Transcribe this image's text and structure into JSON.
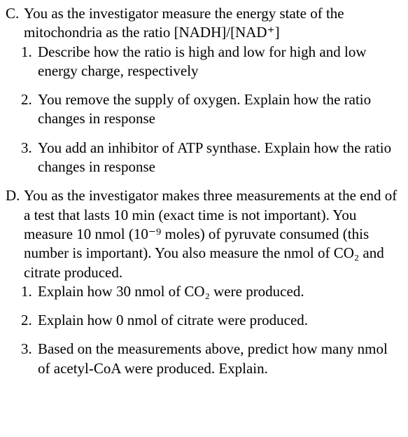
{
  "sectionC": {
    "letter": "C.",
    "intro": "You as the investigator measure the energy state of the mitochondria as the ratio [NADH]/[NAD⁺]",
    "items": [
      {
        "num": "1.",
        "text": "Describe how the ratio is high and low for high and low energy charge, respectively"
      },
      {
        "num": "2.",
        "text": "You remove the supply of oxygen.  Explain how the ratio changes in response"
      },
      {
        "num": "3.",
        "text": "You add an inhibitor of ATP synthase.  Explain how the ratio changes in response"
      }
    ]
  },
  "sectionD": {
    "letter": "D.",
    "intro": "You as the investigator makes three measurements at the end of a test that lasts 10 min (exact time is not important).  You measure 10 nmol (10⁻⁹ moles) of pyruvate consumed (this number is important).  You also measure the nmol of CO₂ and citrate produced.",
    "items": [
      {
        "num": "1.",
        "text": "Explain how 30 nmol of CO₂ were produced."
      },
      {
        "num": "2.",
        "text": "Explain how 0 nmol of citrate were produced."
      },
      {
        "num": "3.",
        "text": "Based on the measurements above, predict how many nmol of acetyl-CoA were produced. Explain."
      }
    ]
  }
}
